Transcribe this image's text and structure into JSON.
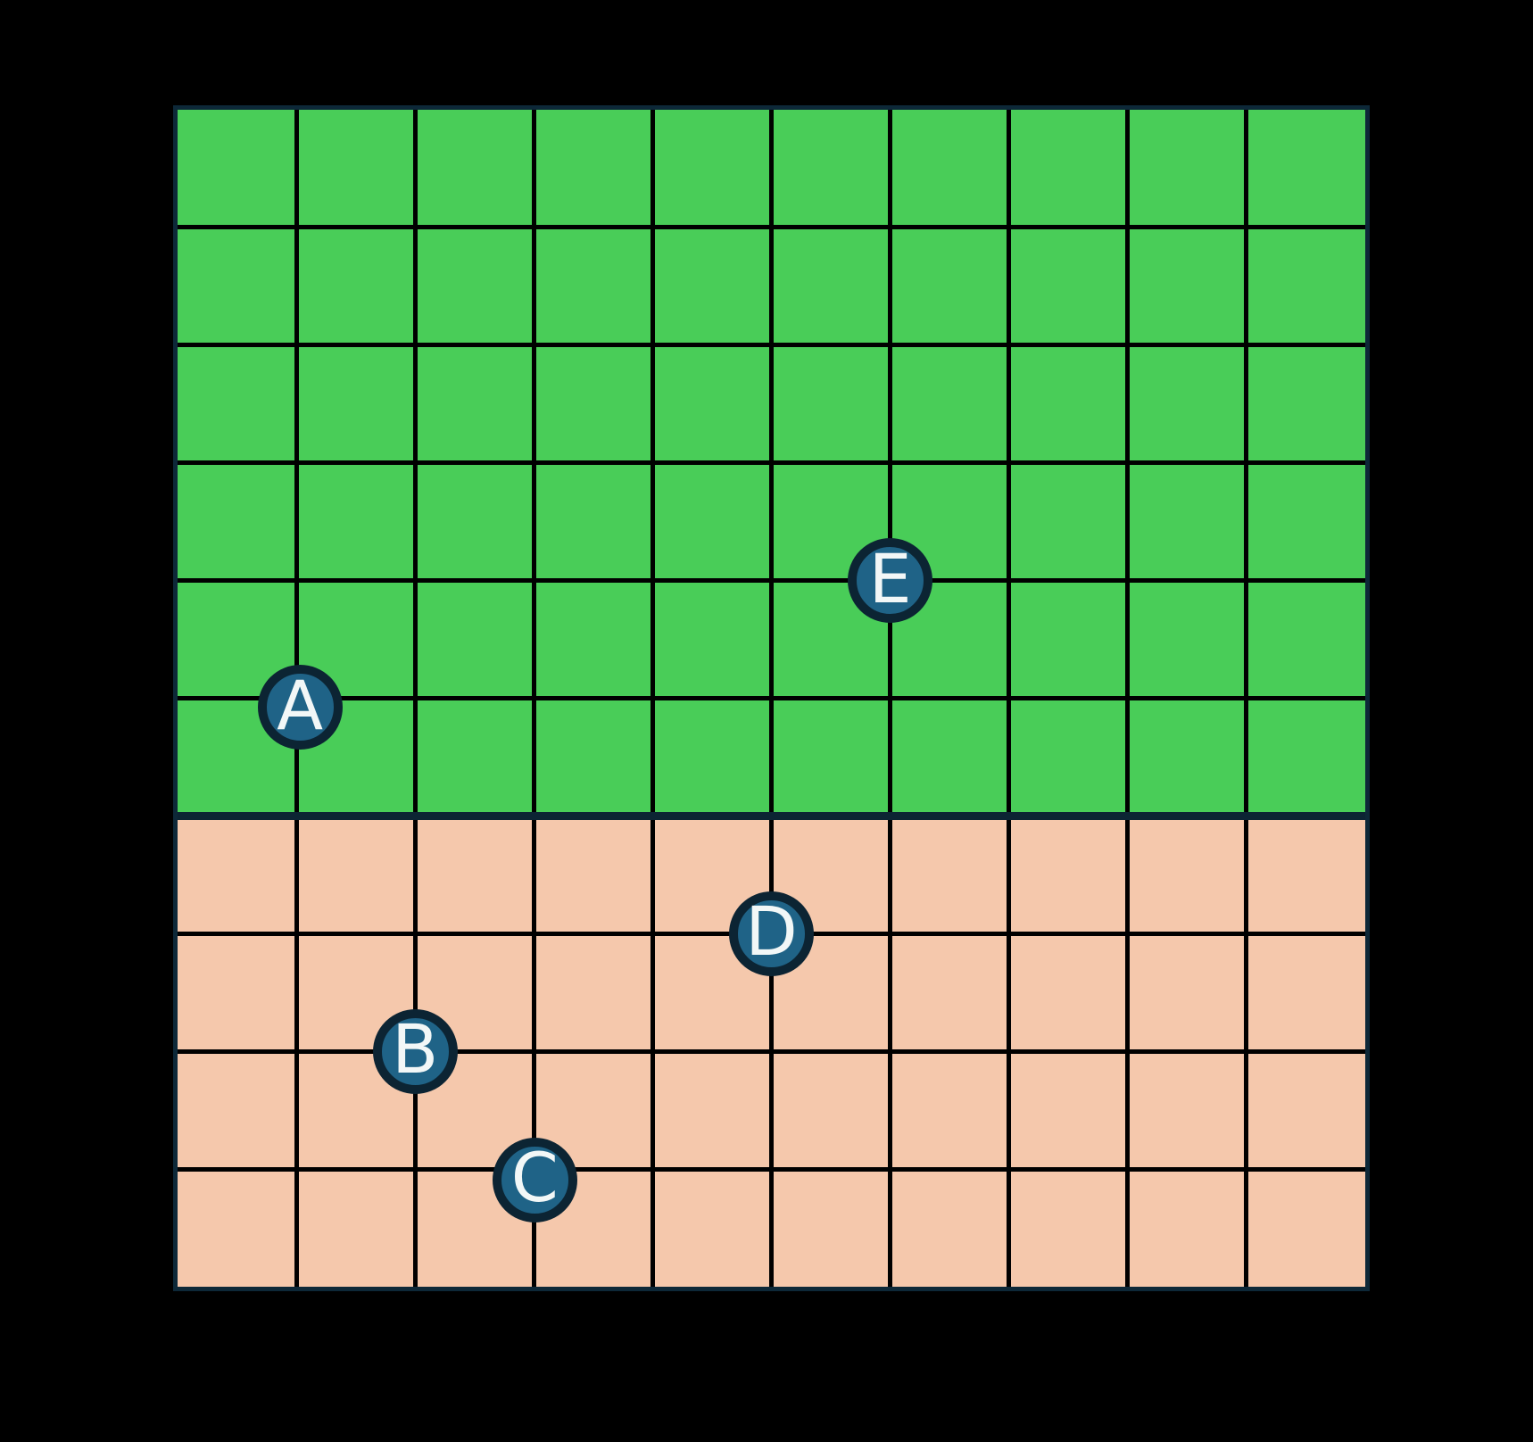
{
  "figure": {
    "background": "#000000",
    "colors": {
      "region_top": "#49CD58",
      "region_bottom": "#F5C8AC",
      "grid_line": "#000000",
      "outer_border": "#0D2838",
      "separator": "#0C2433",
      "marker_fill": "#1F6387",
      "marker_ring": "#0C2433",
      "marker_text": "#F2F7F7"
    }
  },
  "chart_data": {
    "type": "scatter",
    "title": "",
    "xlabel": "",
    "ylabel": "",
    "grid": {
      "cols": 10,
      "rows": 10,
      "x_range": [
        0,
        10
      ],
      "y_range": [
        0,
        10
      ],
      "grid_on": true
    },
    "regions": [
      {
        "name": "upper-region",
        "color_key": "region_top",
        "y_from": 4,
        "y_to": 10
      },
      {
        "name": "lower-region",
        "color_key": "region_bottom",
        "y_from": 0,
        "y_to": 4
      }
    ],
    "points": [
      {
        "label": "A",
        "x": 1,
        "y": 5,
        "region": "upper-region"
      },
      {
        "label": "B",
        "x": 2,
        "y": 2,
        "region": "lower-region"
      },
      {
        "label": "C",
        "x": 3,
        "y": 1,
        "region": "lower-region"
      },
      {
        "label": "D",
        "x": 5,
        "y": 3,
        "region": "lower-region"
      },
      {
        "label": "E",
        "x": 6,
        "y": 6,
        "region": "upper-region"
      }
    ]
  }
}
